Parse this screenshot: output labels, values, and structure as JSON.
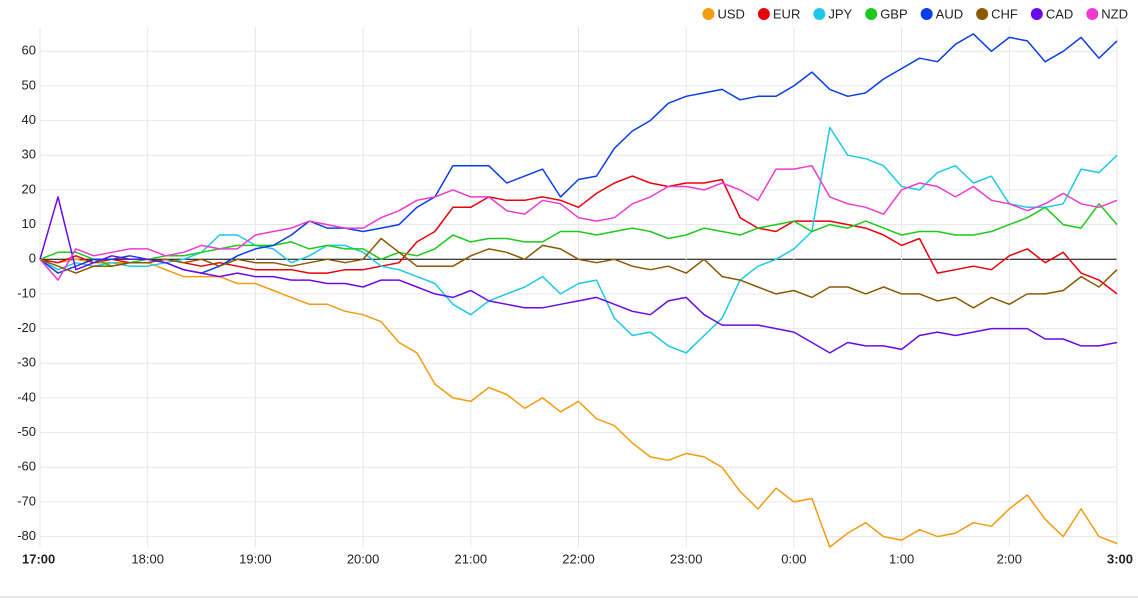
{
  "chart_data": {
    "type": "line",
    "categories": [
      "17:00",
      null,
      null,
      null,
      null,
      null,
      "18:00",
      null,
      null,
      null,
      null,
      null,
      "19:00",
      null,
      null,
      null,
      null,
      null,
      "20:00",
      null,
      null,
      null,
      null,
      null,
      "21:00",
      null,
      null,
      null,
      null,
      null,
      "22:00",
      null,
      null,
      null,
      null,
      null,
      "23:00",
      null,
      null,
      null,
      null,
      null,
      "0:00",
      null,
      null,
      null,
      null,
      null,
      "1:00",
      null,
      null,
      null,
      null,
      null,
      "2:00",
      null,
      null,
      null,
      null,
      null,
      "3:00"
    ],
    "ylim": [
      -83,
      67
    ],
    "yticks": [
      -80,
      -70,
      -60,
      -50,
      -40,
      -30,
      -20,
      -10,
      0,
      10,
      20,
      30,
      40,
      50,
      60
    ],
    "grid": true,
    "legend": "top-right",
    "series": [
      {
        "name": "USD",
        "color": "#f39c12",
        "values": [
          0,
          -1,
          0,
          -1,
          -1,
          -1,
          -1,
          -3,
          -5,
          -5,
          -5,
          -7,
          -7,
          -9,
          -11,
          -13,
          -13,
          -15,
          -16,
          -18,
          -24,
          -27,
          -36,
          -40,
          -41,
          -37,
          -39,
          -43,
          -40,
          -44,
          -41,
          -46,
          -48,
          -53,
          -57,
          -58,
          -56,
          -57,
          -60,
          -67,
          -72,
          -66,
          -70,
          -69,
          -83,
          -79,
          -76,
          -80,
          -81,
          -78,
          -80,
          -79,
          -76,
          -77,
          -72,
          -68,
          -75,
          -80,
          -72,
          -80,
          -82
        ]
      },
      {
        "name": "EUR",
        "color": "#e8000b",
        "values": [
          0,
          -1,
          1,
          -1,
          0,
          -1,
          -1,
          0,
          -1,
          -2,
          -1,
          -2,
          -3,
          -3,
          -3,
          -4,
          -4,
          -3,
          -3,
          -2,
          -1,
          5,
          8,
          15,
          15,
          18,
          17,
          17,
          18,
          17,
          15,
          19,
          22,
          24,
          22,
          21,
          22,
          22,
          23,
          12,
          9,
          8,
          11,
          11,
          11,
          10,
          9,
          7,
          4,
          6,
          -4,
          -3,
          -2,
          -3,
          1,
          3,
          -1,
          2,
          -4,
          -6,
          -10
        ]
      },
      {
        "name": "JPY",
        "color": "#1ec8e8",
        "values": [
          0,
          -3,
          -1,
          -2,
          -1,
          -2,
          -2,
          -1,
          0,
          2,
          7,
          7,
          4,
          3,
          -1,
          1,
          4,
          4,
          2,
          -2,
          -3,
          -5,
          -7,
          -13,
          -16,
          -12,
          -10,
          -8,
          -5,
          -10,
          -7,
          -6,
          -17,
          -22,
          -21,
          -25,
          -27,
          -22,
          -17,
          -6,
          -2,
          0,
          3,
          8,
          38,
          30,
          29,
          27,
          21,
          20,
          25,
          27,
          22,
          24,
          16,
          15,
          15,
          16,
          26,
          25,
          30
        ]
      },
      {
        "name": "GBP",
        "color": "#1ec81e",
        "values": [
          0,
          2,
          2,
          0,
          -2,
          -1,
          0,
          1,
          1,
          2,
          3,
          4,
          4,
          4,
          5,
          3,
          4,
          3,
          3,
          0,
          2,
          1,
          3,
          7,
          5,
          6,
          6,
          5,
          5,
          8,
          8,
          7,
          8,
          9,
          8,
          6,
          7,
          9,
          8,
          7,
          9,
          10,
          11,
          8,
          10,
          9,
          11,
          9,
          7,
          8,
          8,
          7,
          7,
          8,
          10,
          12,
          15,
          10,
          9,
          16,
          10
        ]
      },
      {
        "name": "AUD",
        "color": "#0a3ee8",
        "values": [
          0,
          -4,
          -2,
          0,
          0,
          1,
          0,
          -1,
          -3,
          -4,
          -2,
          1,
          3,
          4,
          7,
          11,
          9,
          9,
          8,
          9,
          10,
          15,
          18,
          27,
          27,
          27,
          22,
          24,
          26,
          18,
          23,
          24,
          32,
          37,
          40,
          45,
          47,
          48,
          49,
          46,
          47,
          47,
          50,
          54,
          49,
          47,
          48,
          52,
          55,
          58,
          57,
          62,
          65,
          60,
          64,
          63,
          57,
          60,
          64,
          58,
          63
        ]
      },
      {
        "name": "CHF",
        "color": "#8b5a00",
        "values": [
          0,
          -2,
          -4,
          -2,
          -2,
          -1,
          -1,
          0,
          -1,
          0,
          -2,
          0,
          -1,
          -1,
          -2,
          -1,
          0,
          -1,
          0,
          6,
          2,
          -2,
          -2,
          -2,
          1,
          3,
          2,
          0,
          4,
          3,
          0,
          -1,
          0,
          -2,
          -3,
          -2,
          -4,
          0,
          -5,
          -6,
          -8,
          -10,
          -9,
          -11,
          -8,
          -8,
          -10,
          -8,
          -10,
          -10,
          -12,
          -11,
          -14,
          -11,
          -13,
          -10,
          -10,
          -9,
          -5,
          -8,
          -3
        ]
      },
      {
        "name": "CAD",
        "color": "#6a0ae8",
        "values": [
          0,
          18,
          -3,
          -1,
          1,
          0,
          0,
          -1,
          -3,
          -4,
          -5,
          -4,
          -5,
          -5,
          -6,
          -6,
          -7,
          -7,
          -8,
          -6,
          -6,
          -8,
          -10,
          -11,
          -9,
          -12,
          -13,
          -14,
          -14,
          -13,
          -12,
          -11,
          -13,
          -15,
          -16,
          -12,
          -11,
          -16,
          -19,
          -19,
          -19,
          -20,
          -21,
          -24,
          -27,
          -24,
          -25,
          -25,
          -26,
          -22,
          -21,
          -22,
          -21,
          -20,
          -20,
          -20,
          -23,
          -23,
          -25,
          -25,
          -24
        ]
      },
      {
        "name": "NZD",
        "color": "#ee3ad0",
        "values": [
          0,
          -6,
          3,
          1,
          2,
          3,
          3,
          1,
          2,
          4,
          3,
          3,
          7,
          8,
          9,
          11,
          10,
          9,
          9,
          12,
          14,
          17,
          18,
          20,
          18,
          18,
          14,
          13,
          17,
          16,
          12,
          11,
          12,
          16,
          18,
          21,
          21,
          20,
          22,
          20,
          17,
          26,
          26,
          27,
          18,
          16,
          15,
          13,
          20,
          22,
          21,
          18,
          21,
          17,
          16,
          14,
          16,
          19,
          16,
          15,
          17
        ]
      }
    ]
  }
}
